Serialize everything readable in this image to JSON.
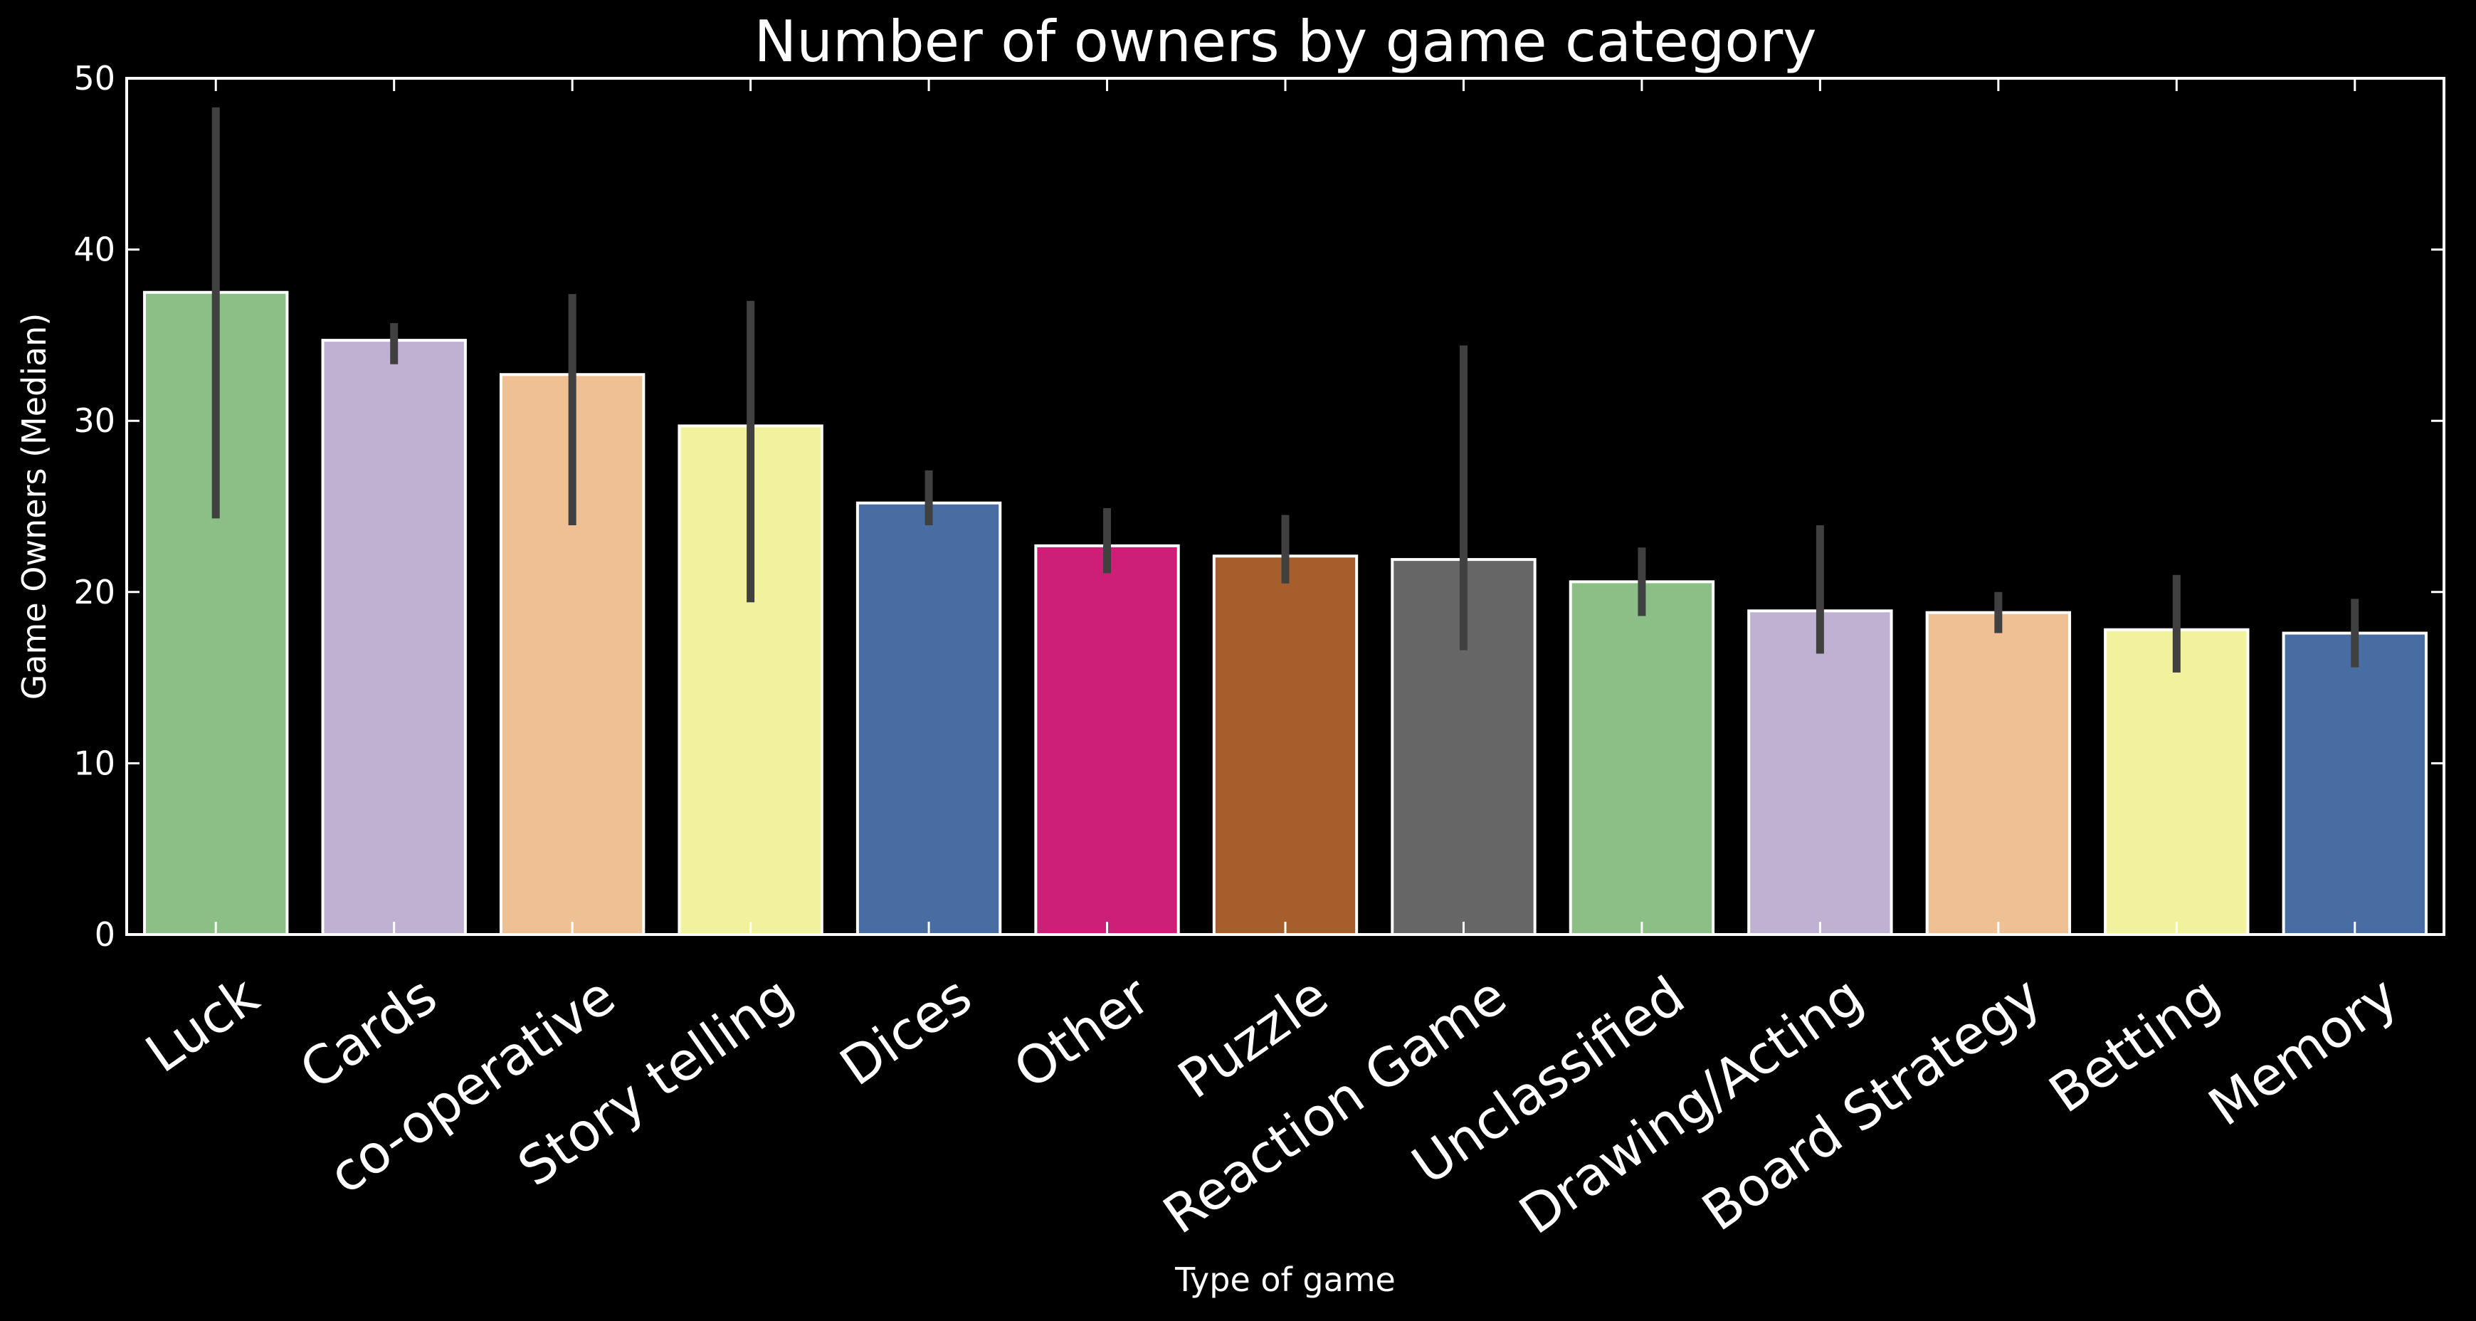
{
  "chart_data": {
    "type": "bar",
    "title": "Number of owners by game category",
    "xlabel": "Type of game",
    "ylabel": "Game Owners (Median)",
    "ylim": [
      0,
      50
    ],
    "yticks": [
      0,
      10,
      20,
      30,
      40,
      50
    ],
    "grid": false,
    "legend": "none",
    "background": "#000000",
    "axis_color": "#ffffff",
    "bar_edge_color": "#ffffff",
    "errorbar_color": "#404040",
    "categories": [
      "Luck",
      "Cards",
      "co-operative",
      "Story telling",
      "Dices",
      "Other",
      "Puzzle",
      "Reaction Game",
      "Unclassified",
      "Drawing/Acting",
      "Board Strategy",
      "Betting",
      "Memory"
    ],
    "values": [
      37.5,
      34.7,
      32.7,
      29.7,
      25.2,
      22.7,
      22.1,
      21.9,
      20.6,
      18.9,
      18.8,
      17.8,
      17.6
    ],
    "error_low": [
      24.3,
      33.3,
      23.9,
      19.4,
      23.9,
      21.1,
      20.5,
      16.6,
      18.6,
      16.4,
      17.6,
      15.3,
      15.6
    ],
    "error_high": [
      48.3,
      35.7,
      37.4,
      37.0,
      27.1,
      24.9,
      24.5,
      34.4,
      22.6,
      23.9,
      20.0,
      21.0,
      19.6
    ],
    "colors": [
      "#8bbf86",
      "#beb1d1",
      "#efc094",
      "#f2f29e",
      "#476da2",
      "#cd1e78",
      "#a55e2c",
      "#666666",
      "#8bbf86",
      "#beb1d1",
      "#efc094",
      "#f2f29e",
      "#476da2"
    ]
  }
}
